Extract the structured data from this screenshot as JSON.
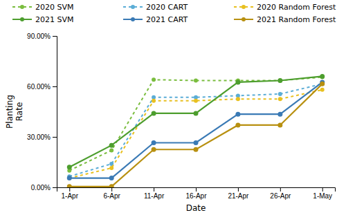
{
  "chart_data": {
    "type": "line",
    "x_label": "Date",
    "y_label": "Planting\nRate",
    "categories": [
      "1-Apr",
      "6-Apr",
      "11-Apr",
      "16-Apr",
      "21-Apr",
      "26-Apr",
      "1-May"
    ],
    "series": [
      {
        "name": "2020 SVM",
        "color": "#7abd3e",
        "line_style": "dotted",
        "marker": "circle",
        "values": [
          0.1,
          0.22,
          0.64,
          0.635,
          0.635,
          0.635,
          0.655
        ]
      },
      {
        "name": "2020 CART",
        "color": "#5badd6",
        "line_style": "dotted",
        "marker": "circle",
        "values": [
          0.065,
          0.14,
          0.535,
          0.535,
          0.545,
          0.555,
          0.615
        ]
      },
      {
        "name": "2020 Random Forest",
        "color": "#e8c020",
        "line_style": "dotted",
        "marker": "circle",
        "values": [
          0.055,
          0.115,
          0.515,
          0.515,
          0.525,
          0.525,
          0.58
        ]
      },
      {
        "name": "2021 SVM",
        "color": "#4d9e2e",
        "line_style": "solid",
        "marker": "circle",
        "values": [
          0.12,
          0.25,
          0.44,
          0.44,
          0.625,
          0.635,
          0.66
        ]
      },
      {
        "name": "2021 CART",
        "color": "#3a7ab5",
        "line_style": "solid",
        "marker": "circle",
        "values": [
          0.055,
          0.055,
          0.265,
          0.265,
          0.435,
          0.435,
          0.625
        ]
      },
      {
        "name": "2021 Random Forest",
        "color": "#b89010",
        "line_style": "solid",
        "marker": "circle",
        "values": [
          0.005,
          0.005,
          0.225,
          0.225,
          0.37,
          0.37,
          0.615
        ]
      }
    ],
    "ylim": [
      0,
      0.9
    ],
    "yticks": [
      {
        "value": 0.0,
        "label": "0.00%"
      },
      {
        "value": 0.3,
        "label": "30.00%"
      },
      {
        "value": 0.6,
        "label": "60.00%"
      },
      {
        "value": 0.9,
        "label": "90.00%"
      }
    ],
    "grid": false,
    "legend": "top"
  }
}
